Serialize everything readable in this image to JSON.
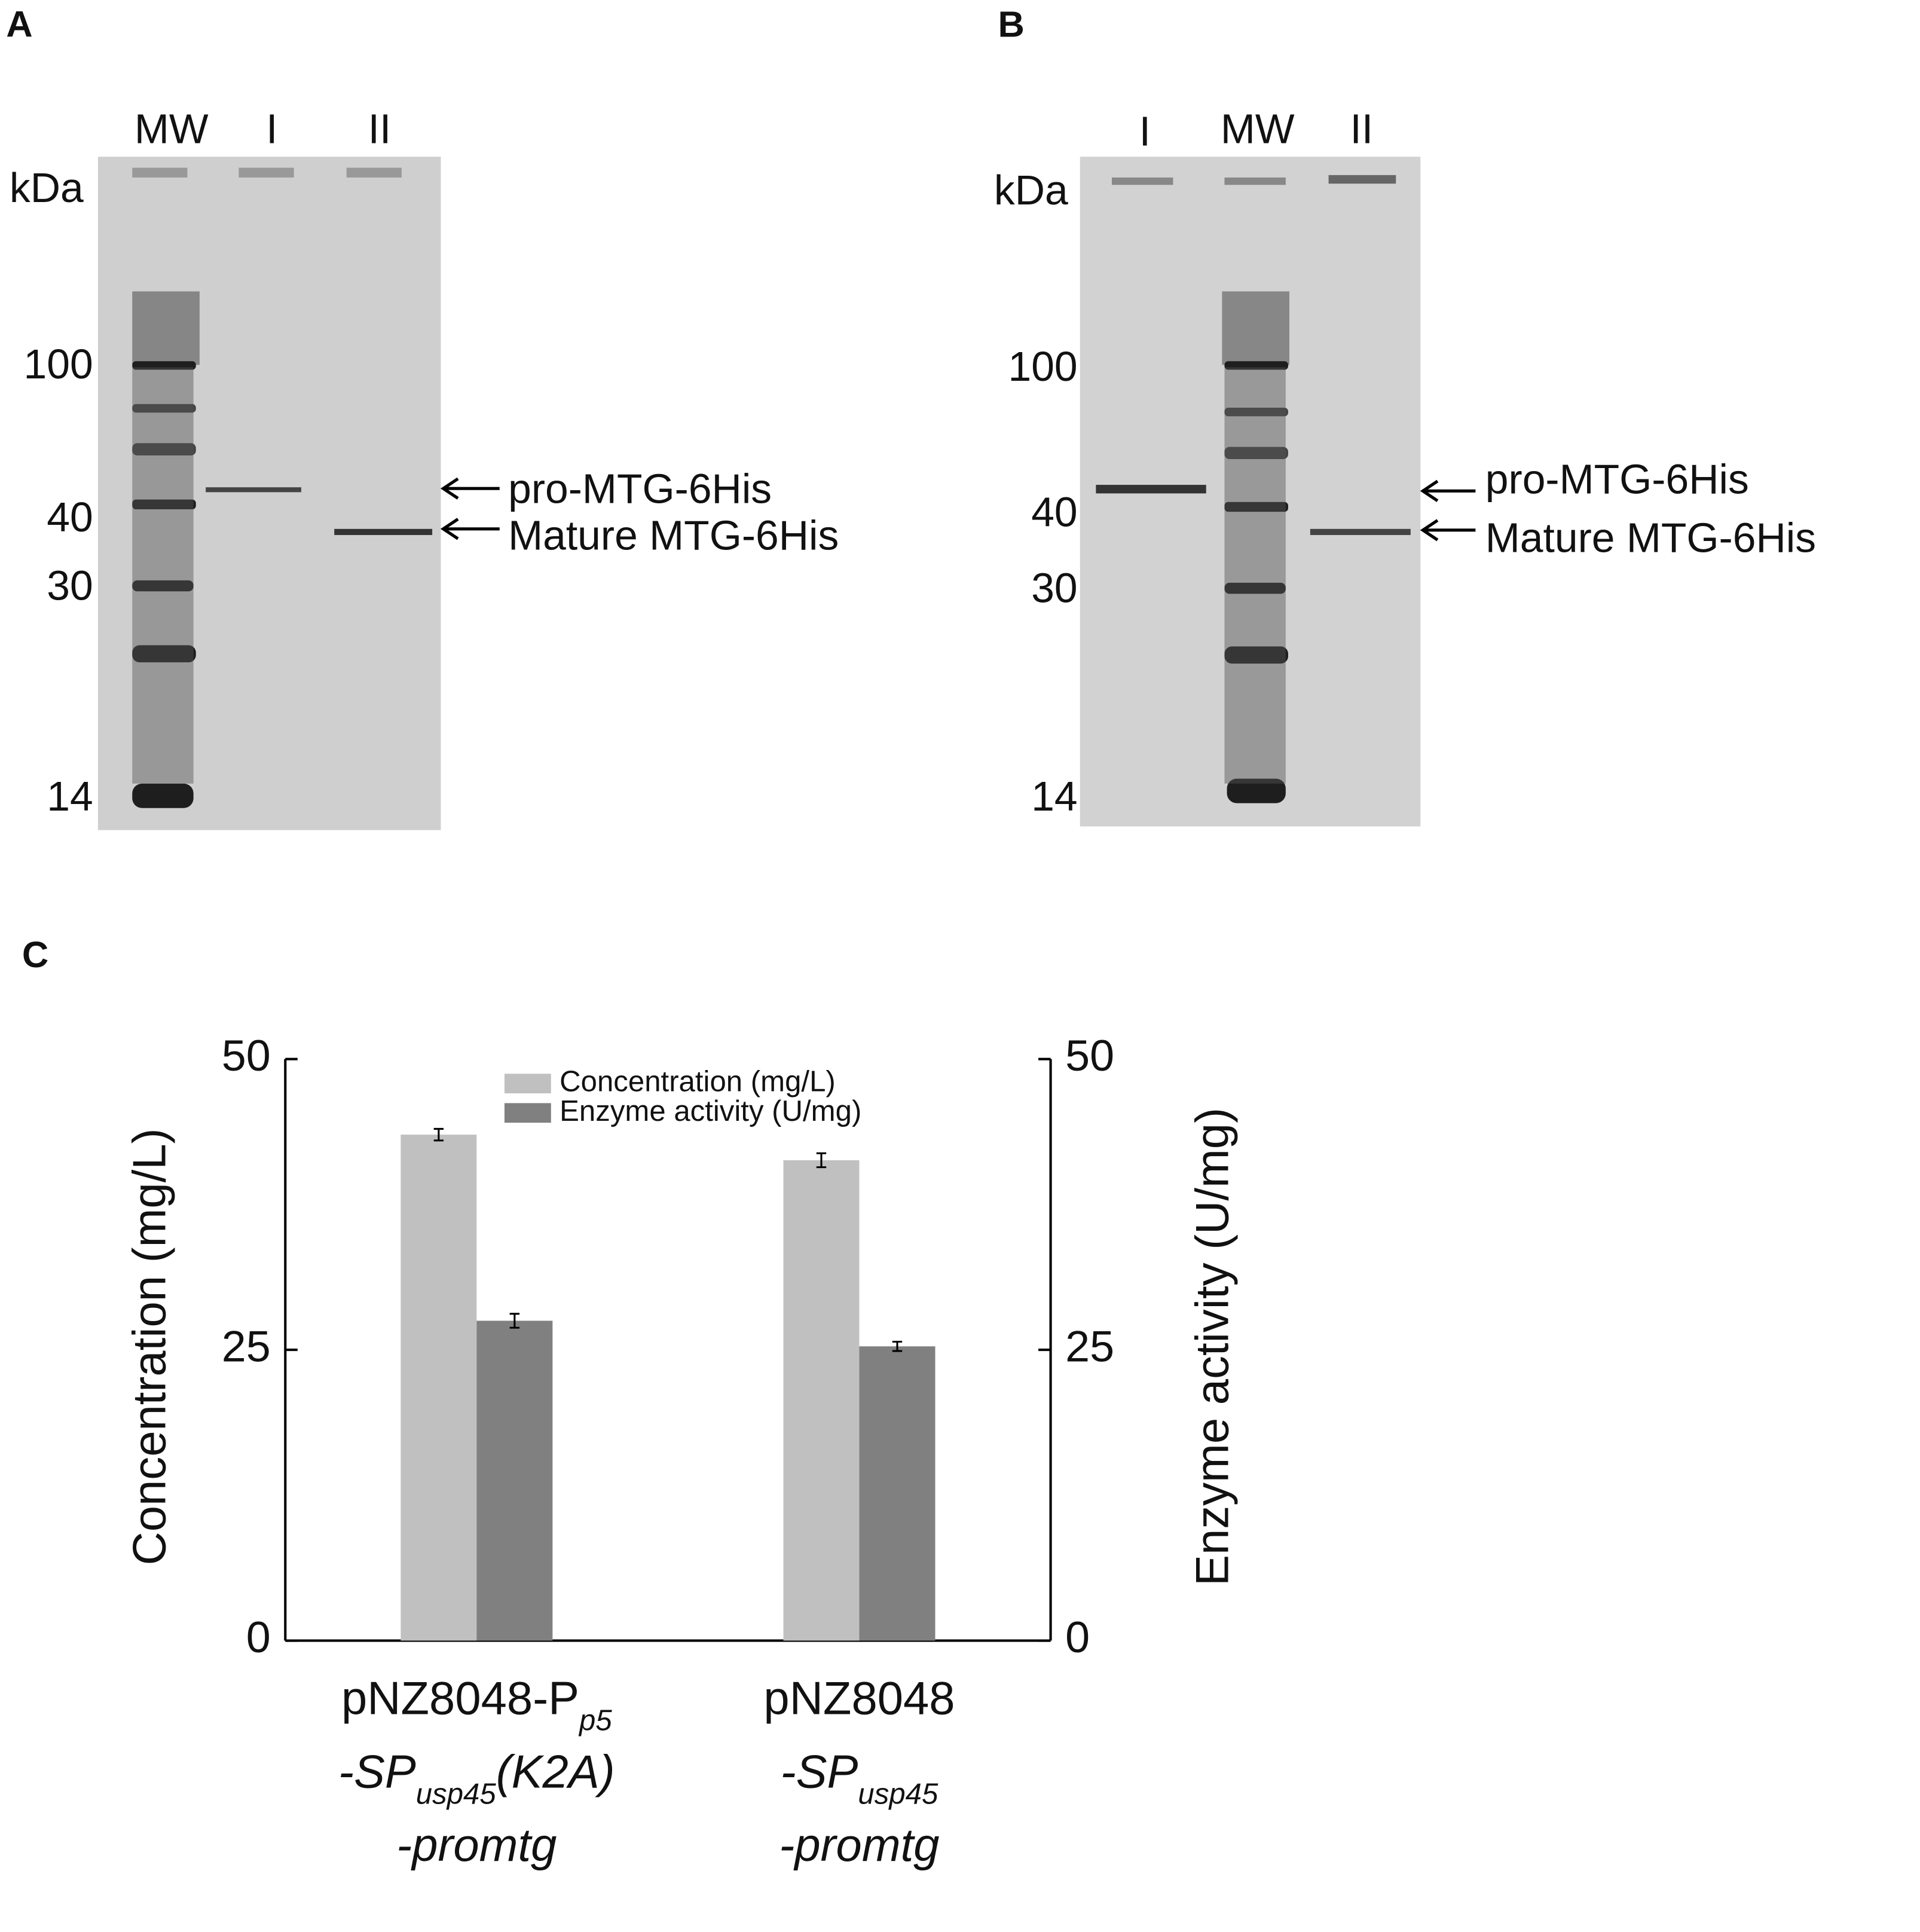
{
  "panel_a": {
    "label": "A",
    "lanes": [
      "MW",
      "I",
      "II"
    ],
    "unit": "kDa",
    "markers": [
      "100",
      "40",
      "30",
      "14"
    ],
    "annotations": [
      "pro-MTG-6His",
      "Mature MTG-6His"
    ]
  },
  "panel_b": {
    "label": "B",
    "lanes": [
      "I",
      "MW",
      "II"
    ],
    "unit": "kDa",
    "markers": [
      "100",
      "40",
      "30",
      "14"
    ],
    "annotations": [
      "pro-MTG-6His",
      "Mature MTG-6His"
    ]
  },
  "chart_data": {
    "type": "bar",
    "panel_label": "C",
    "categories": [
      [
        [
          {
            "text": "pNZ8048-P",
            "style": "normal"
          },
          {
            "text": "p5",
            "style": "sub"
          }
        ],
        [
          {
            "text": "-SP",
            "style": "italic"
          },
          {
            "text": "usp45",
            "style": "sub"
          },
          {
            "text": "(K2A)",
            "style": "italic"
          }
        ],
        [
          {
            "text": "-promtg",
            "style": "italic"
          }
        ]
      ],
      [
        [
          {
            "text": "pNZ8048",
            "style": "normal"
          }
        ],
        [
          {
            "text": "-SP",
            "style": "italic"
          },
          {
            "text": "usp45",
            "style": "sub"
          }
        ],
        [
          {
            "text": "-promtg",
            "style": "italic"
          }
        ]
      ]
    ],
    "series": [
      {
        "name": "Concentration (mg/L)",
        "color": "#c0c0c0",
        "values": [
          43.5,
          41.3
        ],
        "errors": [
          0.5,
          0.6
        ],
        "axis": "y"
      },
      {
        "name": "Enzyme activity (U/mg)",
        "color": "#808080",
        "values": [
          27.5,
          25.3
        ],
        "errors": [
          0.6,
          0.4
        ],
        "axis": "y2"
      }
    ],
    "y_label": "Concentration (mg/L)",
    "y2_label": "Enzyme activity (U/mg)",
    "ylim": [
      0,
      50
    ],
    "yticks": [
      0,
      25,
      50
    ],
    "y2lim": [
      0,
      50
    ],
    "y2ticks": [
      0,
      25,
      50
    ],
    "legend": "top"
  }
}
